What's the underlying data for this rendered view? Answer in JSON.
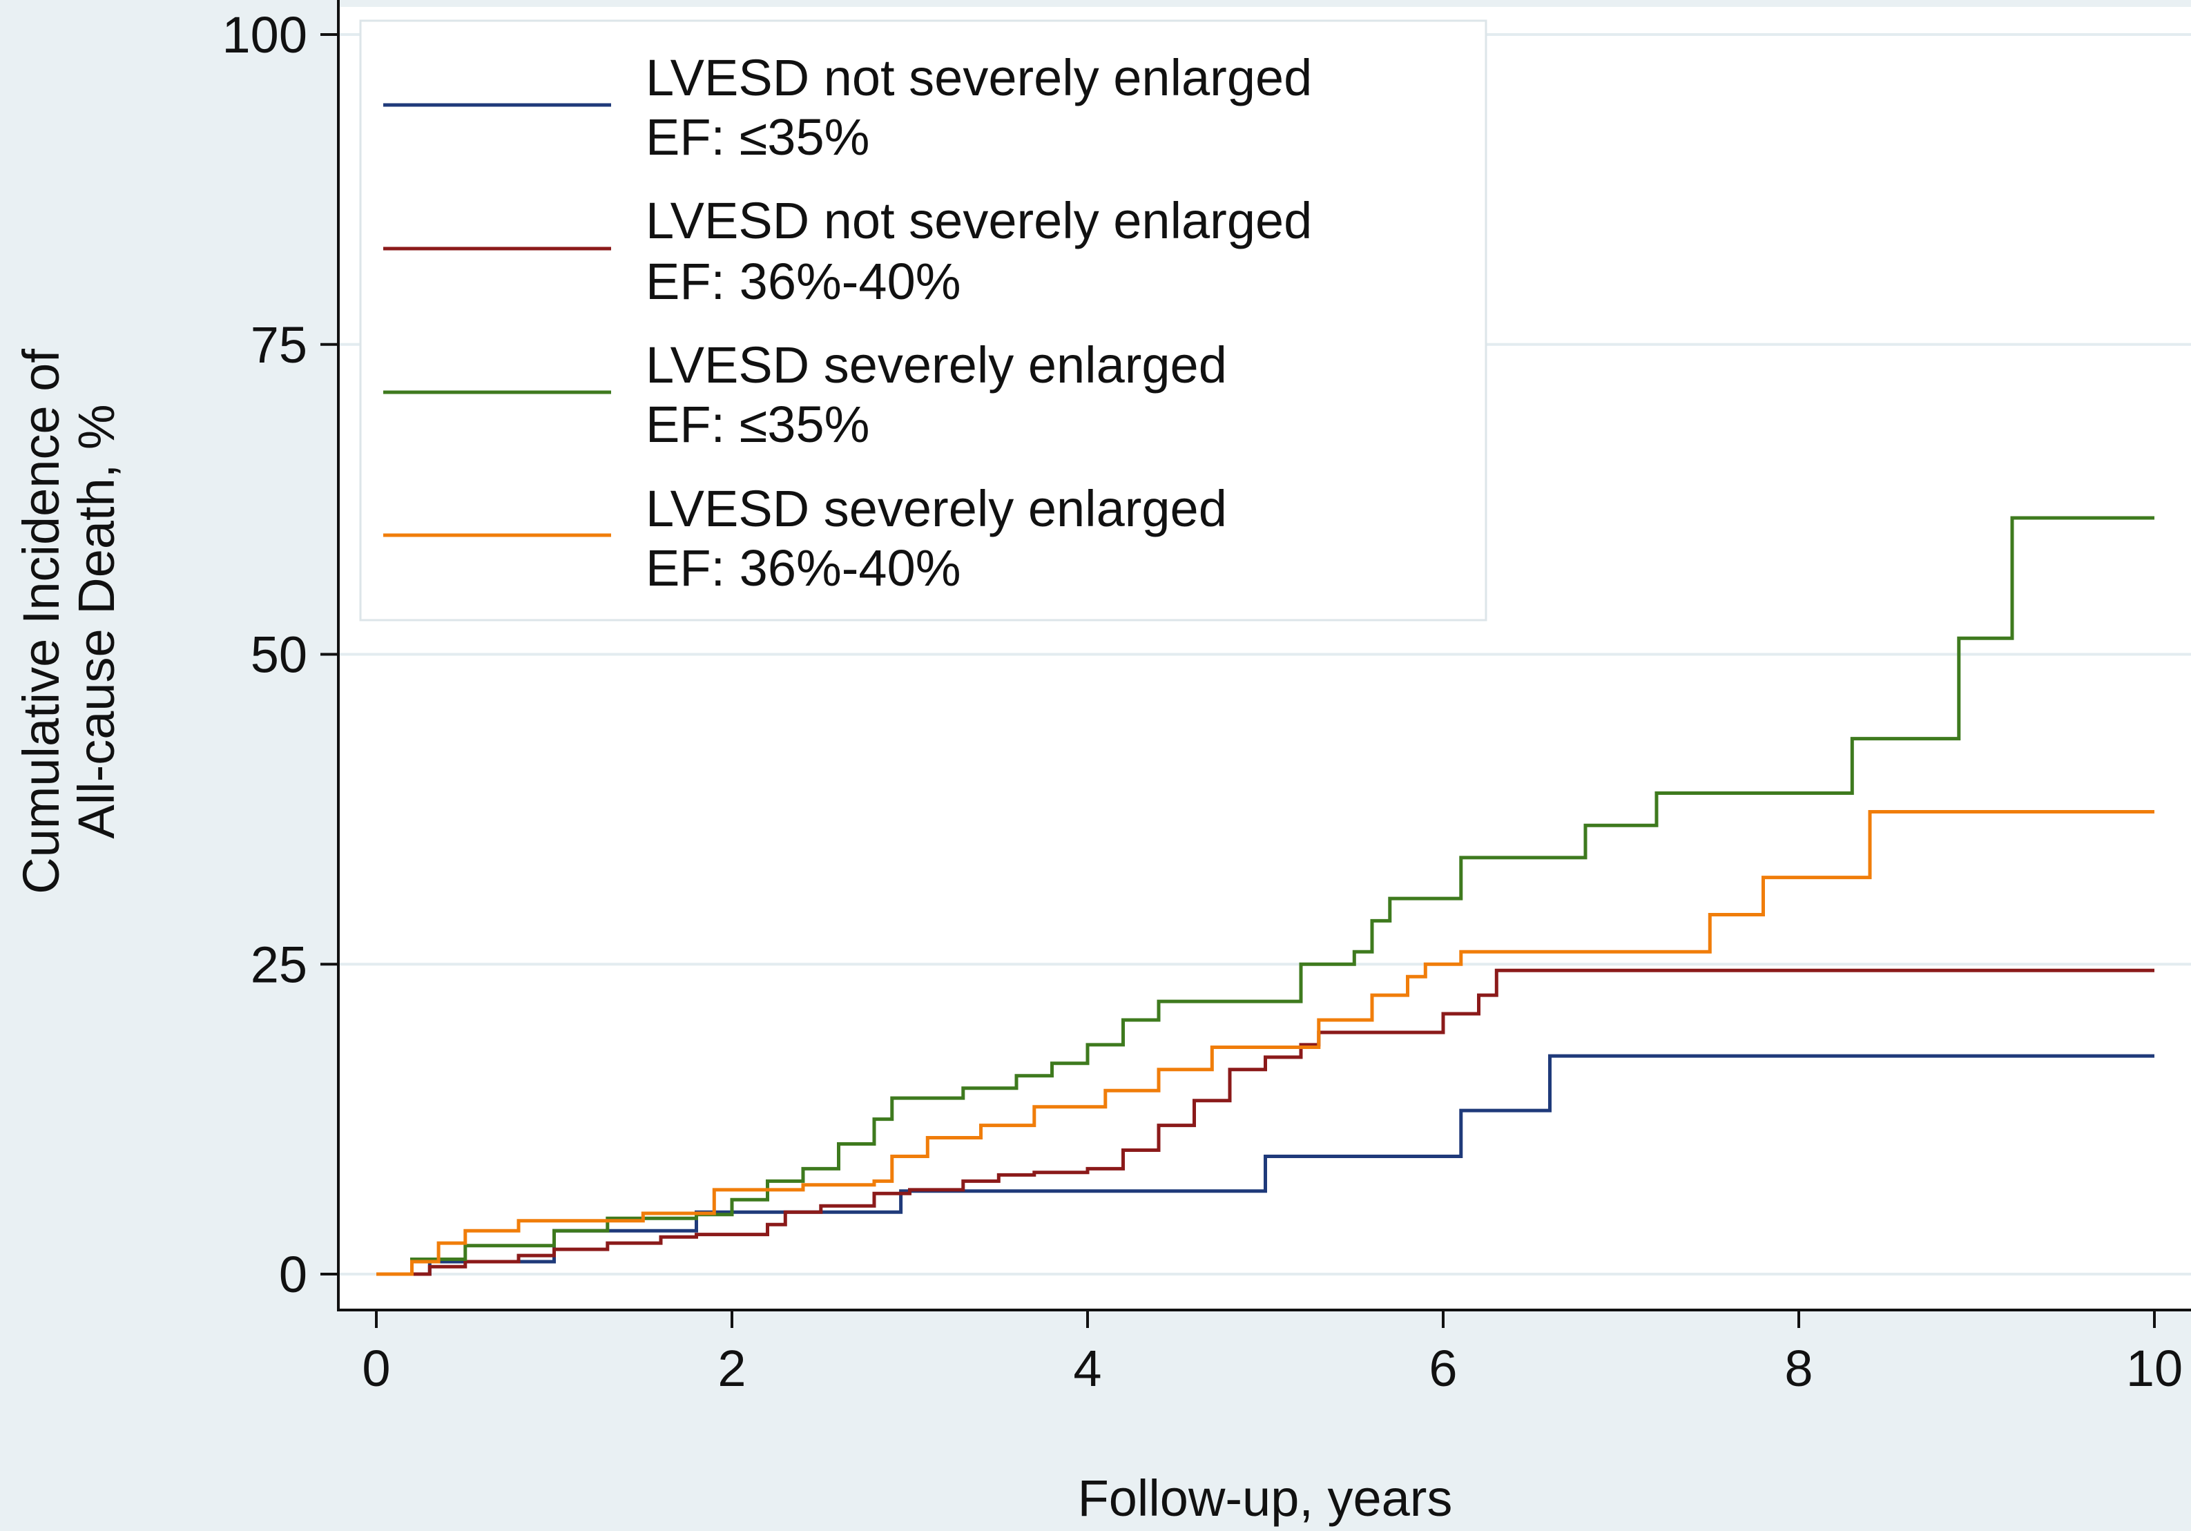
{
  "chart_data": {
    "type": "line",
    "title": "",
    "xlabel": "Follow-up, years",
    "ylabel_lines": [
      "Cumulative Incidence of",
      "All-cause Death, %"
    ],
    "xlim": [
      0,
      10
    ],
    "ylim": [
      0,
      100
    ],
    "x_ticks": [
      0,
      2,
      4,
      6,
      8,
      10
    ],
    "y_ticks": [
      0,
      25,
      50,
      75,
      100
    ],
    "grid": true,
    "legend_position": "top-left",
    "series": [
      {
        "name": "LVESD not severely enlarged EF: ≤35%",
        "legend_lines": [
          "LVESD not severely enlarged",
          "EF: ≤35%"
        ],
        "color": "#1f3a7a",
        "step": true,
        "points": [
          [
            0,
            0
          ],
          [
            0.2,
            0
          ],
          [
            0.3,
            1
          ],
          [
            1.0,
            3.5
          ],
          [
            1.8,
            5
          ],
          [
            2.9,
            5
          ],
          [
            2.95,
            6.7
          ],
          [
            5.0,
            6.7
          ],
          [
            5.0,
            9.5
          ],
          [
            6.1,
            9.5
          ],
          [
            6.1,
            13.2
          ],
          [
            6.6,
            13.2
          ],
          [
            6.6,
            17.6
          ],
          [
            10.0,
            17.6
          ]
        ]
      },
      {
        "name": "LVESD not severely enlarged EF: 36%-40%",
        "legend_lines": [
          "LVESD not severely enlarged",
          "EF: 36%-40%"
        ],
        "color": "#8b1a1a",
        "step": true,
        "points": [
          [
            0,
            0
          ],
          [
            0.25,
            0
          ],
          [
            0.3,
            0.6
          ],
          [
            0.5,
            1
          ],
          [
            0.8,
            1.5
          ],
          [
            1.0,
            2
          ],
          [
            1.3,
            2.5
          ],
          [
            1.6,
            3
          ],
          [
            1.8,
            3.2
          ],
          [
            2.2,
            4
          ],
          [
            2.3,
            5
          ],
          [
            2.5,
            5.5
          ],
          [
            2.8,
            6.5
          ],
          [
            3.0,
            6.8
          ],
          [
            3.3,
            7.5
          ],
          [
            3.5,
            8
          ],
          [
            3.7,
            8.2
          ],
          [
            4.0,
            8.5
          ],
          [
            4.2,
            10
          ],
          [
            4.4,
            12
          ],
          [
            4.6,
            14
          ],
          [
            4.8,
            16.5
          ],
          [
            5.0,
            17.5
          ],
          [
            5.2,
            18.5
          ],
          [
            5.3,
            19.5
          ],
          [
            5.6,
            19.5
          ],
          [
            6.0,
            21
          ],
          [
            6.2,
            22.5
          ],
          [
            6.3,
            24.5
          ],
          [
            10.0,
            24.5
          ]
        ]
      },
      {
        "name": "LVESD severely enlarged EF: ≤35%",
        "legend_lines": [
          "LVESD severely enlarged",
          "EF: ≤35%"
        ],
        "color": "#3e7a1e",
        "step": true,
        "points": [
          [
            0,
            0
          ],
          [
            0.15,
            0
          ],
          [
            0.2,
            1.2
          ],
          [
            0.5,
            2.3
          ],
          [
            1.0,
            3.5
          ],
          [
            1.3,
            4.5
          ],
          [
            1.8,
            4.8
          ],
          [
            2.0,
            6
          ],
          [
            2.2,
            7.5
          ],
          [
            2.4,
            8.5
          ],
          [
            2.6,
            10.5
          ],
          [
            2.8,
            12.5
          ],
          [
            2.9,
            14.2
          ],
          [
            3.3,
            15
          ],
          [
            3.6,
            16
          ],
          [
            3.8,
            17
          ],
          [
            4.0,
            18.5
          ],
          [
            4.2,
            20.5
          ],
          [
            4.4,
            22
          ],
          [
            5.2,
            25
          ],
          [
            5.5,
            26
          ],
          [
            5.6,
            28.5
          ],
          [
            5.7,
            30.3
          ],
          [
            6.1,
            33.6
          ],
          [
            6.8,
            36.2
          ],
          [
            7.2,
            38.8
          ],
          [
            8.3,
            43.2
          ],
          [
            8.9,
            51.3
          ],
          [
            9.2,
            61
          ],
          [
            10.0,
            61
          ]
        ]
      },
      {
        "name": "LVESD severely enlarged EF: 36%-40%",
        "legend_lines": [
          "LVESD severely enlarged",
          "EF: 36%-40%"
        ],
        "color": "#f07d0a",
        "step": true,
        "points": [
          [
            0,
            0
          ],
          [
            0.15,
            0
          ],
          [
            0.2,
            1
          ],
          [
            0.35,
            2.5
          ],
          [
            0.5,
            3.5
          ],
          [
            0.8,
            4.3
          ],
          [
            1.5,
            4.9
          ],
          [
            1.9,
            6.8
          ],
          [
            2.4,
            7.2
          ],
          [
            2.8,
            7.5
          ],
          [
            2.9,
            9.5
          ],
          [
            3.1,
            11
          ],
          [
            3.4,
            12
          ],
          [
            3.7,
            13.5
          ],
          [
            4.1,
            14.8
          ],
          [
            4.4,
            16.5
          ],
          [
            4.7,
            18.3
          ],
          [
            5.3,
            20.5
          ],
          [
            5.6,
            22.5
          ],
          [
            5.8,
            24
          ],
          [
            5.9,
            25
          ],
          [
            6.1,
            26
          ],
          [
            7.5,
            29
          ],
          [
            7.8,
            32
          ],
          [
            8.4,
            37.3
          ],
          [
            10.0,
            37.3
          ]
        ]
      }
    ]
  }
}
